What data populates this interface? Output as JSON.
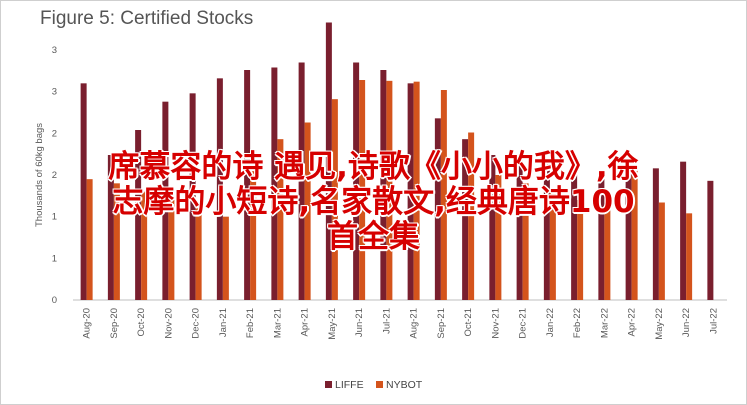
{
  "chart_data": {
    "type": "bar",
    "title": "Figure 5: Certified Stocks",
    "ylabel": "Thousands of 60kg bags",
    "ylim": [
      0,
      3
    ],
    "yticks": [
      "0",
      "1",
      "1",
      "2",
      "2",
      "3",
      "3"
    ],
    "grid": false,
    "legend_position": "bottom",
    "categories": [
      "Aug-20",
      "Sep-20",
      "Oct-20",
      "Nov-20",
      "Dec-20",
      "Jan-21",
      "Feb-21",
      "Mar-21",
      "Apr-21",
      "May-21",
      "Jun-21",
      "Jul-21",
      "Aug-21",
      "Sep-21",
      "Oct-21",
      "Nov-21",
      "Dec-21",
      "Jan-22",
      "Feb-22",
      "Mar-22",
      "Apr-22",
      "May-22",
      "Jun-22",
      "Jul-22"
    ],
    "series": [
      {
        "name": "LIFFE",
        "color": "#7a1f2e",
        "values": [
          2.6,
          1.74,
          2.04,
          2.38,
          2.48,
          2.66,
          2.76,
          2.79,
          2.85,
          3.33,
          2.85,
          2.76,
          2.6,
          2.18,
          1.93,
          1.74,
          1.72,
          1.67,
          1.56,
          1.51,
          1.55,
          1.58,
          1.66,
          1.43
        ]
      },
      {
        "name": "NYBOT",
        "color": "#d4541c",
        "values": [
          1.45,
          1.4,
          1.3,
          1.2,
          1.1,
          1.0,
          1.8,
          1.93,
          2.13,
          2.41,
          2.64,
          2.63,
          2.62,
          2.52,
          2.01,
          1.5,
          1.4,
          1.3,
          1.2,
          1.1,
          1.55,
          1.17,
          1.04,
          null
        ]
      }
    ]
  },
  "overlay": {
    "line1": "席慕容的诗 遇见,诗歌《小小的我》,徐",
    "line2": "志摩的小短诗,名家散文,经典唐诗100",
    "line3": "首全集"
  },
  "legend": {
    "items": [
      "LIFFE",
      "NYBOT"
    ]
  }
}
